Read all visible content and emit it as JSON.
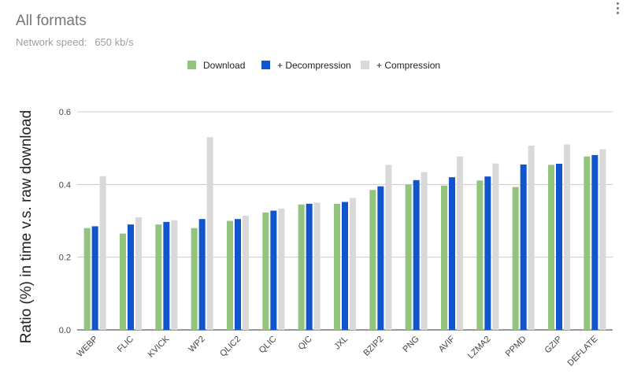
{
  "header": {
    "title": "All formats",
    "subtitle_label": "Network speed:",
    "subtitle_value": "650 kb/s"
  },
  "menu": {
    "icon": "more-vert-icon"
  },
  "chart_data": {
    "type": "bar",
    "ylabel": "Ratio (%) in time  v.s.  raw download",
    "xlabel": "",
    "ylim": [
      0,
      0.6
    ],
    "yticks": [
      "0.0",
      "0.2",
      "0.4",
      "0.6"
    ],
    "grid": true,
    "legend_position": "top",
    "categories": [
      "WEBP",
      "FLIC",
      "KVICK",
      "WP2",
      "QLIC2",
      "QLIC",
      "QIC",
      "JXL",
      "BZIP2",
      "PNG",
      "AVIF",
      "LZMA2",
      "PPMD",
      "GZIP",
      "DEFLATE"
    ],
    "series": [
      {
        "name": "Download",
        "color": "#93c47d",
        "values": [
          0.28,
          0.265,
          0.29,
          0.28,
          0.3,
          0.323,
          0.345,
          0.347,
          0.385,
          0.4,
          0.397,
          0.411,
          0.393,
          0.454,
          0.477
        ]
      },
      {
        "name": "+ Decompression",
        "color": "#1155cc",
        "values": [
          0.285,
          0.29,
          0.297,
          0.305,
          0.305,
          0.328,
          0.347,
          0.352,
          0.395,
          0.412,
          0.42,
          0.422,
          0.455,
          0.457,
          0.481
        ]
      },
      {
        "name": "+ Compression",
        "color": "#d9d9d9",
        "values": [
          0.423,
          0.31,
          0.302,
          0.53,
          0.314,
          0.334,
          0.35,
          0.363,
          0.454,
          0.434,
          0.477,
          0.458,
          0.507,
          0.51,
          0.497
        ]
      }
    ]
  }
}
